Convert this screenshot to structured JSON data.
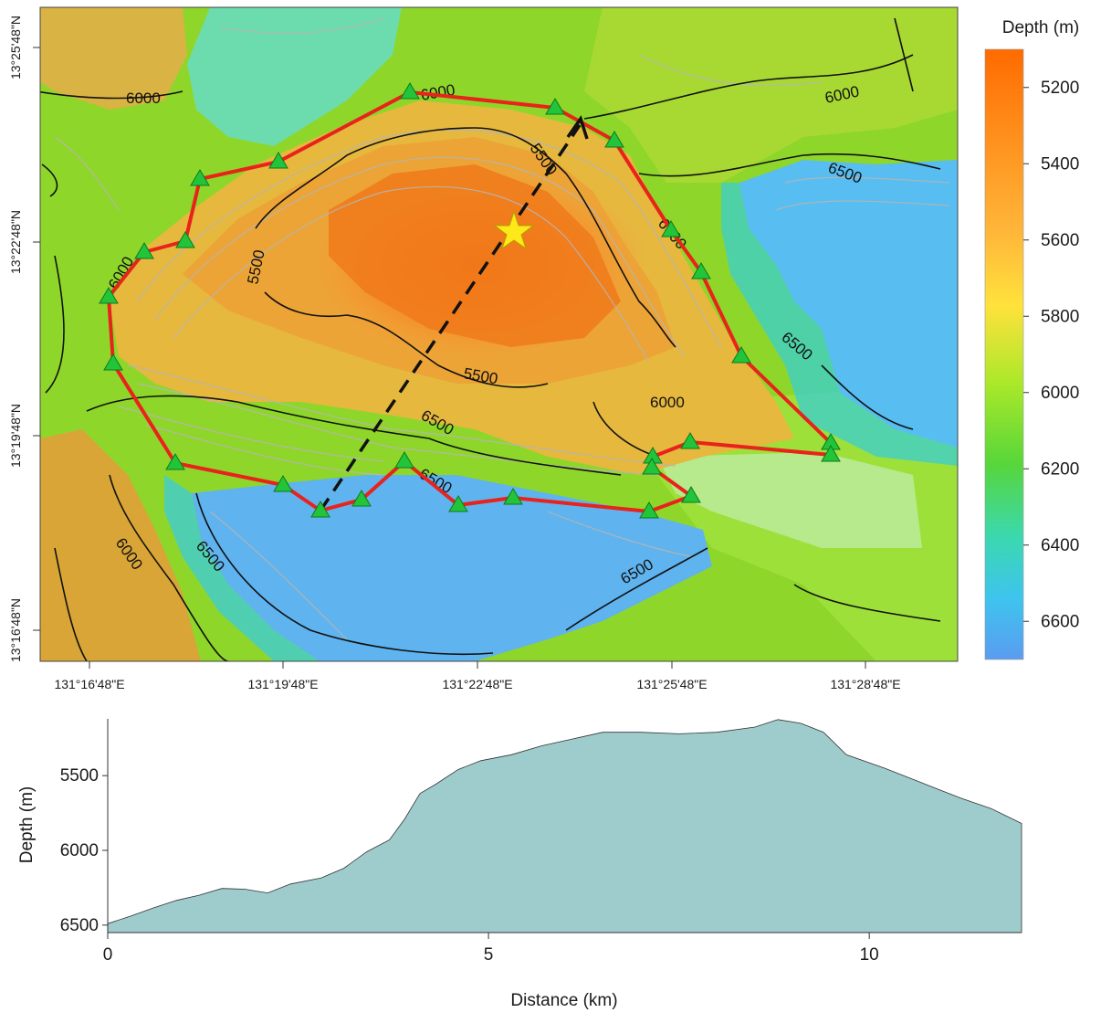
{
  "map": {
    "lon_ticks": [
      "131°16'48\"E",
      "131°19'48\"E",
      "131°22'48\"E",
      "131°25'48\"E",
      "131°28'48\"E"
    ],
    "lat_ticks": [
      "13°25'48\"N",
      "13°22'48\"N",
      "13°19'48\"N",
      "13°16'48\"N"
    ],
    "contour_labels": [
      "6000",
      "6000",
      "6000",
      "6000",
      "6000",
      "6000",
      "6000",
      "5500",
      "5500",
      "5500",
      "6500",
      "6500",
      "6500",
      "6500",
      "6500",
      "6500"
    ],
    "station_icon": "green-triangle-icon",
    "epicenter_icon": "yellow-star-icon",
    "colors": {
      "deep": "#5aa9f0",
      "shallow": "#ff7a10",
      "boundary": "#e8231c",
      "stations": "#22c43a",
      "epicenter": "#ffe81a"
    }
  },
  "colorbar": {
    "title": "Depth (m)",
    "ticks": [
      "5200",
      "5400",
      "5600",
      "5800",
      "6000",
      "6200",
      "6400",
      "6600"
    ],
    "range": [
      5100,
      6700
    ]
  },
  "chart_data": {
    "type": "area",
    "xlabel": "Distance (km)",
    "ylabel": "Depth (m)",
    "xlim": [
      0,
      12
    ],
    "ylim": [
      6550,
      5120
    ],
    "y_inverted": true,
    "fill_color": "#9ecbcc",
    "x_ticks": [
      "0",
      "5",
      "10"
    ],
    "y_ticks": [
      "5500",
      "6000",
      "6500"
    ],
    "x": [
      0,
      0.3,
      0.6,
      0.9,
      1.2,
      1.5,
      1.8,
      2.1,
      2.4,
      2.8,
      3.1,
      3.4,
      3.7,
      3.9,
      4.1,
      4.3,
      4.6,
      4.9,
      5.3,
      5.7,
      6.1,
      6.5,
      7.0,
      7.5,
      8.0,
      8.5,
      8.8,
      9.1,
      9.4,
      9.7,
      10.2,
      10.7,
      11.2,
      11.6,
      12.0
    ],
    "y": [
      6490,
      6440,
      6385,
      6335,
      6300,
      6255,
      6260,
      6285,
      6225,
      6185,
      6120,
      6010,
      5930,
      5790,
      5620,
      5560,
      5460,
      5400,
      5360,
      5300,
      5255,
      5210,
      5210,
      5220,
      5210,
      5175,
      5125,
      5150,
      5210,
      5360,
      5450,
      5550,
      5650,
      5720,
      5820
    ]
  }
}
